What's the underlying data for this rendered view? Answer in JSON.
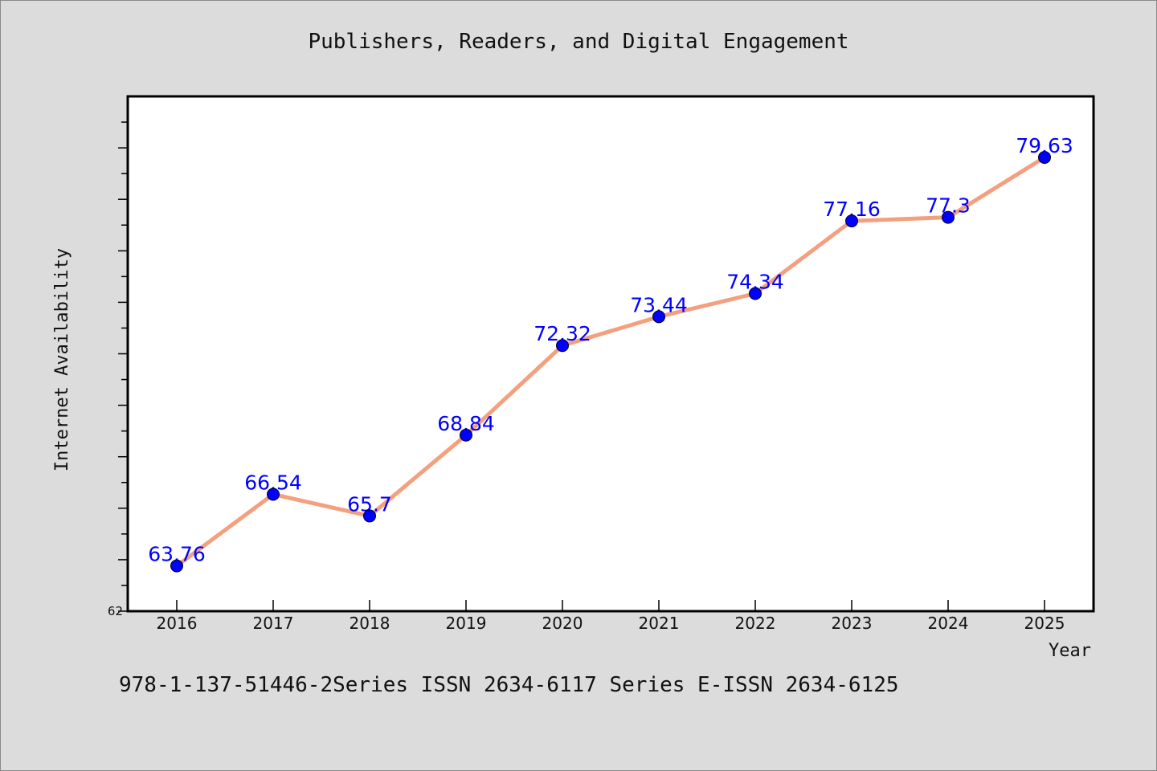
{
  "chart_data": {
    "type": "line",
    "title": "Publishers, Readers, and Digital Engagement",
    "xlabel": "Year",
    "ylabel": "Internet Availability",
    "x": [
      "2016",
      "2017",
      "2018",
      "2019",
      "2020",
      "2021",
      "2022",
      "2023",
      "2024",
      "2025"
    ],
    "series": [
      {
        "values": [
          63.76,
          66.54,
          65.7,
          68.84,
          72.32,
          73.44,
          74.34,
          77.16,
          77.3,
          79.63
        ],
        "labels": [
          "63.76",
          "66.54",
          "65.7",
          "68.84",
          "72.32",
          "73.44",
          "74.34",
          "77.16",
          "77.3",
          "79.63"
        ],
        "line_color": "#f4a07e",
        "marker_color": "#0000ff"
      }
    ],
    "ylim": [
      62,
      82
    ],
    "yticks_labeled": [
      "62"
    ],
    "grid": false,
    "legend": "none"
  },
  "footer": {
    "text": "978-1-137-51446-2Series ISSN 2634-6117 Series E-ISSN 2634-6125"
  },
  "colors": {
    "background": "#dcdcdc",
    "plot_background": "#ffffff",
    "line": "#f4a07e",
    "marker": "#0000ff",
    "data_label": "#0000ff"
  }
}
